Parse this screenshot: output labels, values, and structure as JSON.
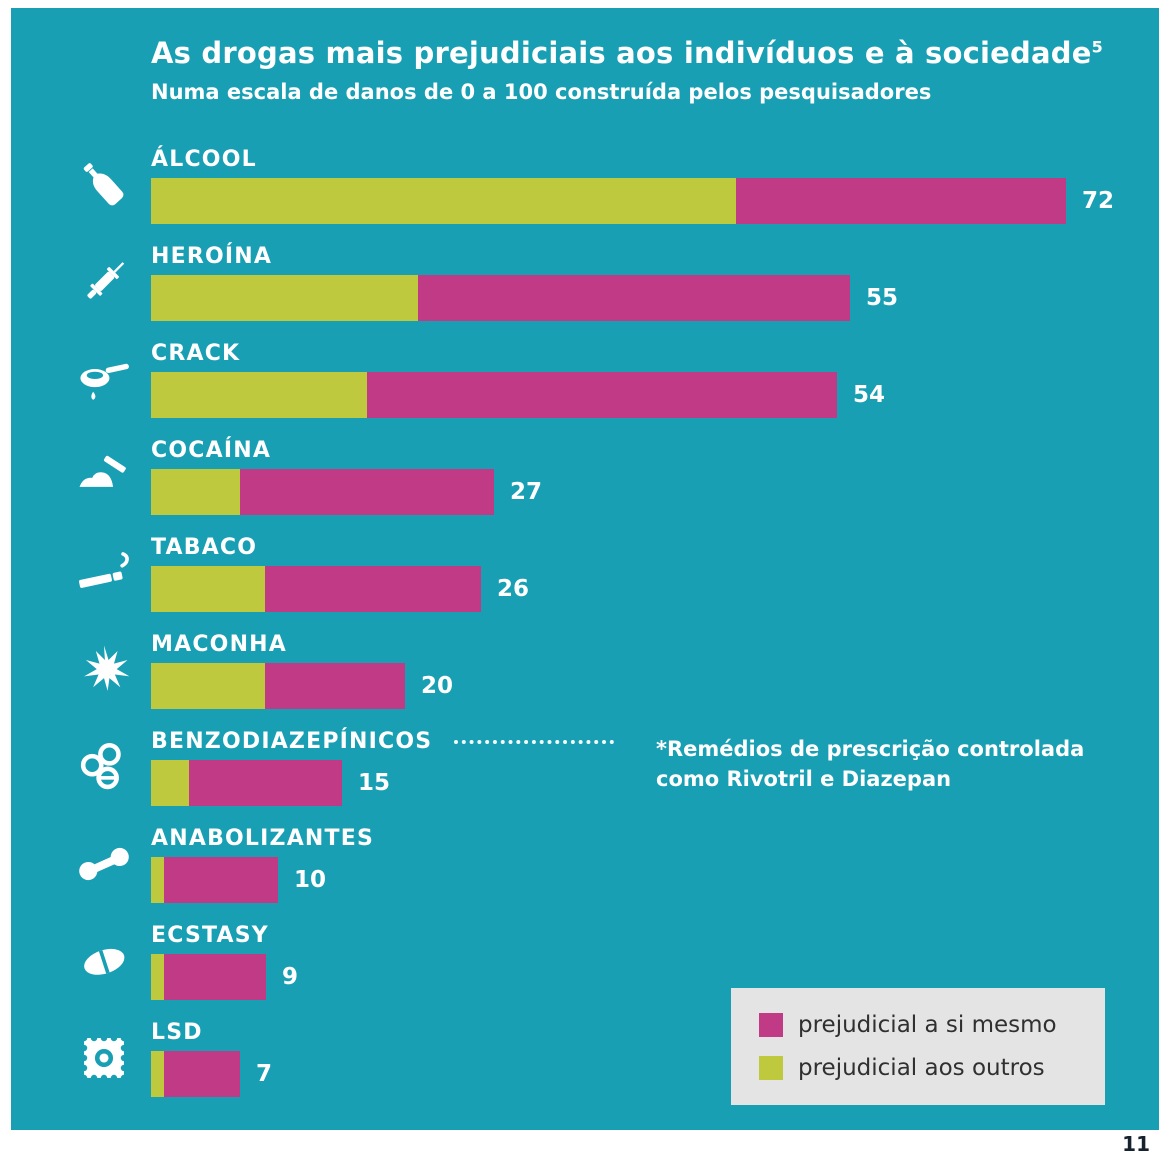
{
  "chart_data": {
    "type": "bar",
    "orientation": "horizontal",
    "stacked": true,
    "title": "As drogas mais prejudiciais aos indivíduos e à sociedade",
    "title_superscript": "5",
    "subtitle": "Numa escala de danos de 0 a 100 construída pelos pesquisadores",
    "scale": {
      "min": 0,
      "max": 100
    },
    "series": [
      {
        "name": "prejudicial a si mesmo",
        "key": "self",
        "color": "#c03a85"
      },
      {
        "name": "prejudicial aos outros",
        "key": "others",
        "color": "#bfc93e"
      }
    ],
    "rows": [
      {
        "label": "ÁLCOOL",
        "icon": "bottle-icon",
        "total": 72,
        "others": 46,
        "self": 26
      },
      {
        "label": "HEROÍNA",
        "icon": "syringe-icon",
        "total": 55,
        "others": 21,
        "self": 34
      },
      {
        "label": "CRACK",
        "icon": "pipe-icon",
        "total": 54,
        "others": 17,
        "self": 37
      },
      {
        "label": "COCAÍNA",
        "icon": "powder-razor-icon",
        "total": 27,
        "others": 7,
        "self": 20
      },
      {
        "label": "TABACO",
        "icon": "cigarette-icon",
        "total": 26,
        "others": 9,
        "self": 17
      },
      {
        "label": "MACONHA",
        "icon": "cannabis-leaf-icon",
        "total": 20,
        "others": 9,
        "self": 11
      },
      {
        "label": "BENZODIAZEPÍNICOS",
        "icon": "pills-icon",
        "total": 15,
        "others": 3,
        "self": 12,
        "leader_dots": true
      },
      {
        "label": "ANABOLIZANTES",
        "icon": "dumbbell-icon",
        "total": 10,
        "others": 1,
        "self": 9
      },
      {
        "label": "ECSTASY",
        "icon": "pill-icon",
        "total": 9,
        "others": 1,
        "self": 8
      },
      {
        "label": "LSD",
        "icon": "stamp-icon",
        "total": 7,
        "others": 1,
        "self": 6
      }
    ],
    "annotation": {
      "line1": "*Remédios de prescrição controlada",
      "line2_prefix": "como ",
      "line2_bold1": "Rivotril",
      "line2_middle": " e ",
      "line2_bold2": "Diazepan"
    },
    "legend": [
      {
        "label": "prejudicial a si mesmo",
        "color": "#c03a85"
      },
      {
        "label": "prejudicial aos outros",
        "color": "#bfc93e"
      }
    ],
    "legend_position": "bottom-right"
  },
  "page": {
    "number": "11"
  },
  "colors": {
    "background": "#189fb3",
    "bar_self": "#c03a85",
    "bar_others": "#bfc93e",
    "text": "#ffffff",
    "legend_bg": "#e4e4e4",
    "legend_text": "#303030",
    "page_number": "#16222e"
  }
}
